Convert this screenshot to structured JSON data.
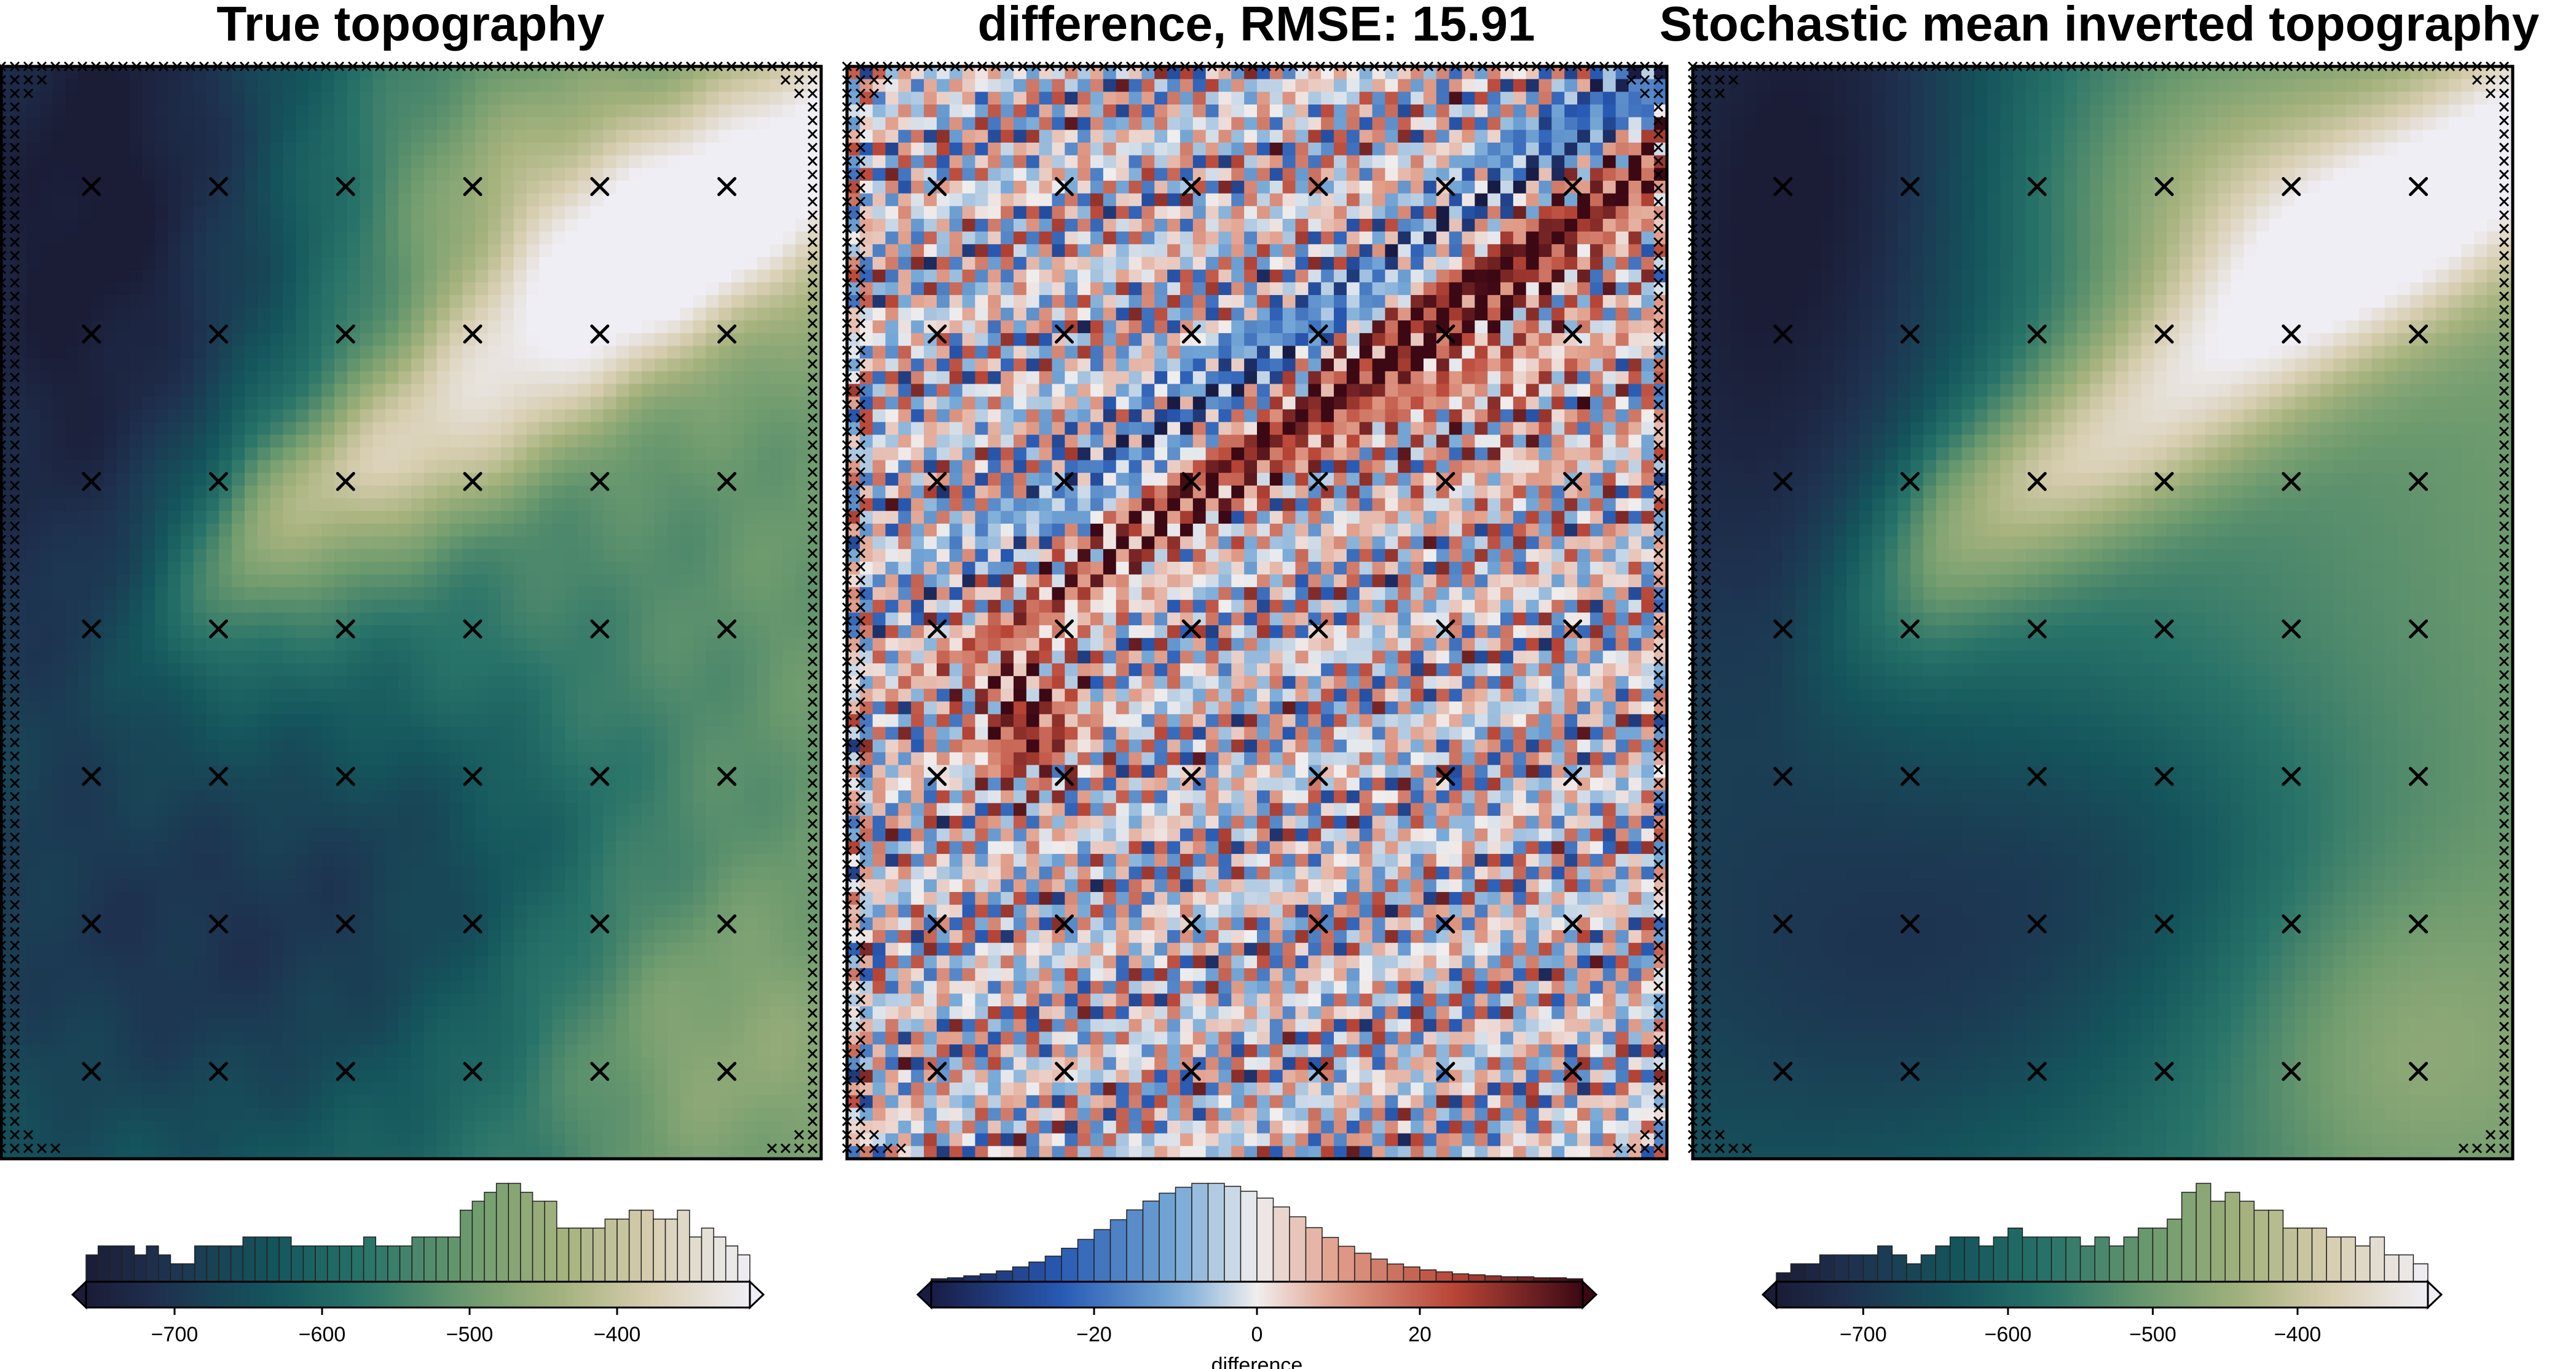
{
  "chart_data": [
    {
      "type": "heatmap",
      "title": "True topography",
      "colormap": "rain (dark navy → teal → green → tan → white)",
      "colorbar_range": [
        -760,
        -310
      ],
      "colorbar_ticks": [
        "−700",
        "−600",
        "−500",
        "−400"
      ],
      "colorbar_label": "",
      "histogram": [
        3,
        4,
        4,
        4,
        3,
        4,
        3,
        2,
        2,
        4,
        4,
        4,
        4,
        5,
        5,
        5,
        5,
        4,
        4,
        4,
        4,
        4,
        4,
        5,
        4,
        4,
        4,
        5,
        5,
        5,
        5,
        8,
        9,
        10,
        11,
        11,
        10,
        9,
        9,
        6,
        6,
        6,
        6,
        7,
        7,
        8,
        8,
        7,
        7,
        8,
        5,
        6,
        5,
        4,
        3
      ],
      "station_markers": "x",
      "edge_markers": "dense x (hatched border)"
    },
    {
      "type": "heatmap",
      "title": "difference, RMSE: 15.91",
      "colormap": "balance (blue → white → red)",
      "colorbar_range": [
        -40,
        40
      ],
      "colorbar_ticks": [
        "−20",
        "0",
        "20"
      ],
      "colorbar_label": "difference",
      "histogram": [
        0.3,
        0.4,
        0.6,
        0.8,
        1.1,
        1.5,
        2,
        2.6,
        3.4,
        4.3,
        5.3,
        6.3,
        7.3,
        8.2,
        9,
        9.6,
        10,
        10,
        9.7,
        9.2,
        8.5,
        7.6,
        6.6,
        5.5,
        4.5,
        3.6,
        2.9,
        2.3,
        1.8,
        1.5,
        1.2,
        1,
        0.8,
        0.7,
        0.6,
        0.5,
        0.5,
        0.4,
        0.4,
        0.3
      ],
      "station_markers": "x",
      "edge_markers": "dense x (hatched border)"
    },
    {
      "type": "heatmap",
      "title": "Stochastic mean inverted topography",
      "colormap": "rain (dark navy → teal → green → tan → white)",
      "colorbar_range": [
        -760,
        -310
      ],
      "colorbar_ticks": [
        "−700",
        "−600",
        "−500",
        "−400"
      ],
      "colorbar_label": "",
      "histogram": [
        1,
        2,
        2,
        3,
        3,
        3,
        3,
        4,
        3,
        2,
        3,
        4,
        5,
        5,
        4,
        5,
        6,
        5,
        5,
        5,
        5,
        4,
        5,
        4,
        5,
        6,
        6,
        7,
        10,
        11,
        9,
        10,
        9,
        8,
        8,
        6,
        6,
        6,
        5,
        5,
        4,
        5,
        3,
        3,
        2
      ],
      "station_markers": "x",
      "edge_markers": "dense x (hatched border)"
    }
  ]
}
